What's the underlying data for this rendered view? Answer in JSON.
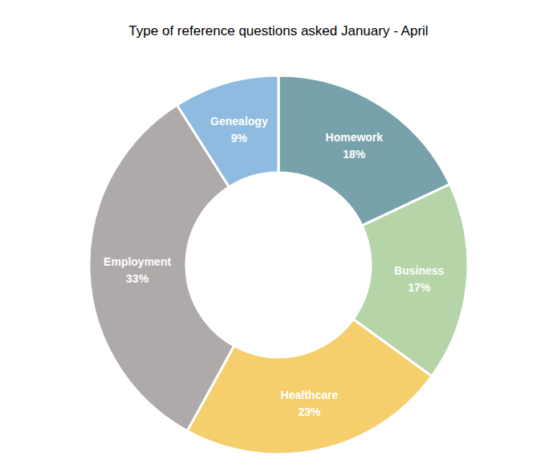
{
  "chart_data": {
    "type": "donut",
    "title": "Type of reference questions asked January - April",
    "categories": [
      "Homework",
      "Business",
      "Healthcare",
      "Employment",
      "Genealogy"
    ],
    "values": [
      18,
      17,
      23,
      33,
      9
    ],
    "value_labels": [
      "18%",
      "17%",
      "23%",
      "33%",
      "9%"
    ],
    "colors": [
      "#78a2ab",
      "#b5d4a7",
      "#f5cf6b",
      "#aeaaa9",
      "#8fbbe0"
    ],
    "data_labels": true
  }
}
